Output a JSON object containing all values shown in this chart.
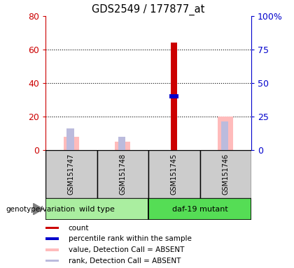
{
  "title": "GDS2549 / 177877_at",
  "samples": [
    "GSM151747",
    "GSM151748",
    "GSM151745",
    "GSM151746"
  ],
  "count_values": [
    0,
    0,
    64,
    0
  ],
  "percentile_values": [
    0,
    0,
    32,
    0
  ],
  "absent_value_values": [
    8,
    5,
    0,
    20
  ],
  "absent_rank_values": [
    13,
    8,
    0,
    17
  ],
  "left_ylim": [
    0,
    80
  ],
  "right_ylim": [
    0,
    100
  ],
  "left_yticks": [
    0,
    20,
    40,
    60,
    80
  ],
  "right_yticks": [
    0,
    25,
    50,
    75,
    100
  ],
  "left_yticklabels": [
    "0",
    "20",
    "40",
    "60",
    "80"
  ],
  "right_yticklabels": [
    "0",
    "25",
    "50",
    "75",
    "100%"
  ],
  "color_count": "#cc0000",
  "color_percentile": "#0000cc",
  "color_absent_value": "#ffbbbb",
  "color_absent_rank": "#bbbbdd",
  "bg_color": "#ffffff",
  "left_tick_color": "#cc0000",
  "right_tick_color": "#0000cc",
  "wt_color": "#aaeea0",
  "mut_color": "#55dd55",
  "gray_color": "#cccccc"
}
